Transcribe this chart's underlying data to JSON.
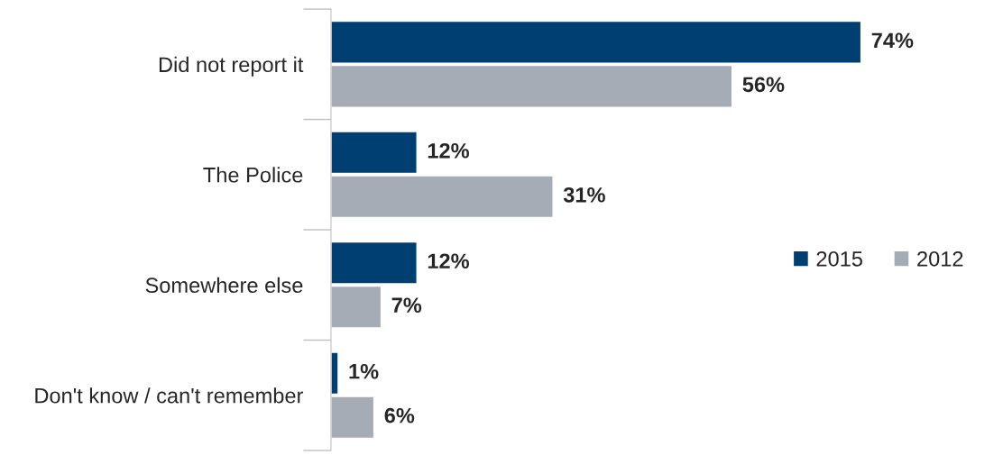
{
  "chart_data": {
    "type": "bar",
    "orientation": "horizontal",
    "categories": [
      "Did not report it",
      "The Police",
      "Somewhere else",
      "Don't know / can't remember"
    ],
    "series": [
      {
        "name": "2015",
        "color": "#003f72",
        "values": [
          74,
          12,
          12,
          1
        ],
        "value_labels": [
          "74%",
          "12%",
          "12%",
          "1%"
        ]
      },
      {
        "name": "2012",
        "color": "#a5acb5",
        "values": [
          56,
          31,
          7,
          6
        ],
        "value_labels": [
          "56%",
          "31%",
          "7%",
          "6%"
        ]
      }
    ],
    "legend": "right",
    "grid": false
  }
}
